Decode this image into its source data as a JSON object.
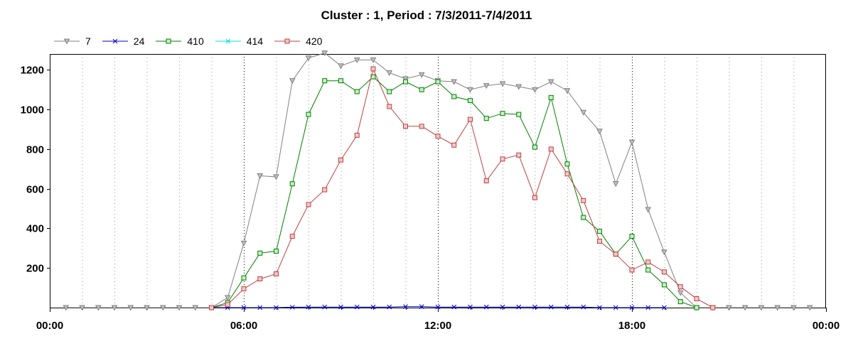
{
  "chart_data": {
    "type": "line",
    "title": "Cluster : 1, Period : 7/3/2011-7/4/2011",
    "xlabel": "",
    "ylabel": "",
    "xlim": [
      "00:00",
      "24:00"
    ],
    "ylim": [
      0,
      1280
    ],
    "x_ticks": [
      "00:00",
      "06:00",
      "12:00",
      "18:00",
      "00:00"
    ],
    "y_ticks": [
      "200",
      "400",
      "600",
      "800",
      "1000",
      "1200"
    ],
    "grid": true,
    "legend_position": "top-left",
    "series": [
      {
        "name": "7",
        "color": "#808080",
        "marker": "triangle-down",
        "x": [
          "00:30",
          "01:00",
          "01:30",
          "02:00",
          "02:30",
          "03:00",
          "03:30",
          "04:00",
          "04:30",
          "05:00",
          "05:30",
          "06:00",
          "06:30",
          "07:00",
          "07:30",
          "08:00",
          "08:30",
          "09:00",
          "09:30",
          "10:00",
          "10:30",
          "11:00",
          "11:30",
          "12:00",
          "12:30",
          "13:00",
          "13:30",
          "14:00",
          "14:30",
          "15:00",
          "15:30",
          "16:00",
          "16:30",
          "17:00",
          "17:30",
          "18:00",
          "18:30",
          "19:00",
          "19:30",
          "20:00",
          "20:30",
          "21:00",
          "21:30",
          "22:00",
          "22:30",
          "23:00",
          "23:30"
        ],
        "values": [
          0,
          0,
          0,
          0,
          0,
          0,
          0,
          0,
          0,
          0,
          50,
          325,
          665,
          660,
          1145,
          1260,
          1285,
          1220,
          1250,
          1250,
          1185,
          1155,
          1175,
          1145,
          1140,
          1100,
          1120,
          1130,
          1115,
          1100,
          1140,
          1095,
          985,
          890,
          625,
          835,
          495,
          280,
          75,
          0,
          0,
          0,
          0,
          0,
          0,
          0,
          0
        ]
      },
      {
        "name": "24",
        "color": "#0000c0",
        "marker": "x",
        "x": [
          "05:00",
          "05:30",
          "06:00",
          "06:30",
          "07:00",
          "07:30",
          "08:00",
          "08:30",
          "09:00",
          "09:30",
          "10:00",
          "10:30",
          "11:00",
          "11:30",
          "12:00",
          "12:30",
          "13:00",
          "13:30",
          "14:00",
          "14:30",
          "15:00",
          "15:30",
          "16:00",
          "16:30",
          "17:00",
          "17:30",
          "18:00",
          "18:30",
          "19:00"
        ],
        "values": [
          0,
          0,
          0,
          0,
          0,
          2,
          3,
          3,
          3,
          3,
          3,
          3,
          5,
          5,
          3,
          3,
          3,
          3,
          3,
          3,
          3,
          3,
          3,
          3,
          0,
          0,
          0,
          0,
          0
        ]
      },
      {
        "name": "410",
        "color": "#008000",
        "marker": "square",
        "x": [
          "05:00",
          "05:30",
          "06:00",
          "06:30",
          "07:00",
          "07:30",
          "08:00",
          "08:30",
          "09:00",
          "09:30",
          "10:00",
          "10:30",
          "11:00",
          "11:30",
          "12:00",
          "12:30",
          "13:00",
          "13:30",
          "14:00",
          "14:30",
          "15:00",
          "15:30",
          "16:00",
          "16:30",
          "17:00",
          "17:30",
          "18:00",
          "18:30",
          "19:00",
          "19:30",
          "20:00"
        ],
        "values": [
          0,
          25,
          150,
          275,
          285,
          625,
          975,
          1145,
          1145,
          1090,
          1165,
          1090,
          1140,
          1100,
          1140,
          1065,
          1045,
          955,
          980,
          975,
          810,
          1060,
          725,
          455,
          385,
          270,
          360,
          190,
          115,
          30,
          0
        ]
      },
      {
        "name": "414",
        "color": "#00e0e0",
        "marker": "x",
        "x": [],
        "values": []
      },
      {
        "name": "420",
        "color": "#c04040",
        "marker": "square",
        "x": [
          "05:00",
          "05:30",
          "06:00",
          "06:30",
          "07:00",
          "07:30",
          "08:00",
          "08:30",
          "09:00",
          "09:30",
          "10:00",
          "10:30",
          "11:00",
          "11:30",
          "12:00",
          "12:30",
          "13:00",
          "13:30",
          "14:00",
          "14:30",
          "15:00",
          "15:30",
          "16:00",
          "16:30",
          "17:00",
          "17:30",
          "18:00",
          "18:30",
          "19:00",
          "19:30",
          "20:00",
          "20:30"
        ],
        "values": [
          0,
          15,
          95,
          145,
          170,
          360,
          520,
          595,
          745,
          870,
          1205,
          1015,
          915,
          915,
          865,
          820,
          950,
          640,
          750,
          770,
          555,
          800,
          675,
          540,
          335,
          270,
          190,
          230,
          180,
          105,
          45,
          0
        ]
      }
    ]
  }
}
